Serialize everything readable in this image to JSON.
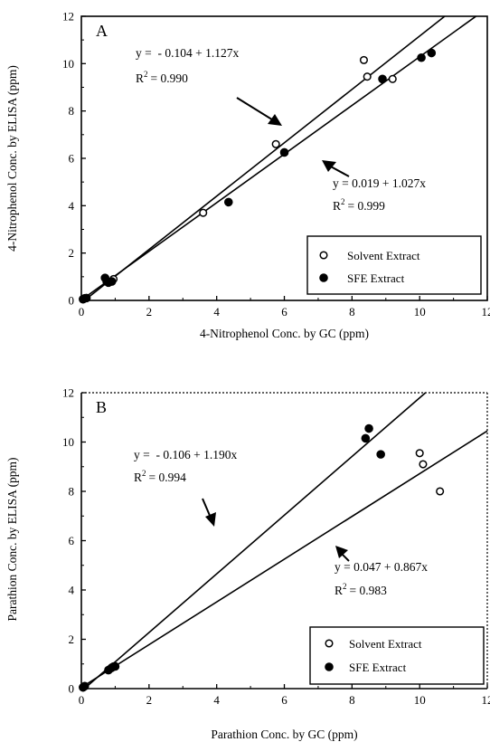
{
  "chart_data": [
    {
      "type": "scatter",
      "panel_label": "A",
      "xlabel": "4-Nitrophenol Conc. by GC (ppm)",
      "ylabel": "4-Nitrophenol Conc. by ELISA (ppm)",
      "xlim": [
        0,
        12
      ],
      "ylim": [
        0,
        12
      ],
      "xticks": [
        "0",
        "2",
        "4",
        "6",
        "8",
        "10",
        "12"
      ],
      "yticks": [
        "0",
        "2",
        "4",
        "6",
        "8",
        "10",
        "12"
      ],
      "grid": false,
      "legend_position": "bottom-right",
      "series": [
        {
          "name": "Solvent Extract",
          "marker": "open-circle",
          "points": [
            [
              0.05,
              0.05
            ],
            [
              0.1,
              0.1
            ],
            [
              0.75,
              0.8
            ],
            [
              0.95,
              0.9
            ],
            [
              3.6,
              3.7
            ],
            [
              5.75,
              6.6
            ],
            [
              8.35,
              10.15
            ],
            [
              8.45,
              9.45
            ],
            [
              9.2,
              9.35
            ]
          ]
        },
        {
          "name": "SFE Extract",
          "marker": "filled-circle",
          "points": [
            [
              0.05,
              0.05
            ],
            [
              0.15,
              0.1
            ],
            [
              0.7,
              0.95
            ],
            [
              0.75,
              0.8
            ],
            [
              0.8,
              0.75
            ],
            [
              0.9,
              0.8
            ],
            [
              4.35,
              4.15
            ],
            [
              6.0,
              6.25
            ],
            [
              8.9,
              9.35
            ],
            [
              10.05,
              10.25
            ],
            [
              10.35,
              10.45
            ]
          ]
        }
      ],
      "fits": [
        {
          "series": "Solvent Extract",
          "intercept": -0.104,
          "slope": 1.127,
          "equation": "y =  - 0.104 + 1.127x",
          "r2_prefix": "R",
          "r2_exp": "2",
          "r2_value": "= 0.990"
        },
        {
          "series": "SFE Extract",
          "intercept": 0.019,
          "slope": 1.027,
          "equation": "y = 0.019 + 1.027x",
          "r2_prefix": "R",
          "r2_exp": "2",
          "r2_value": "= 0.999"
        }
      ]
    },
    {
      "type": "scatter",
      "panel_label": "B",
      "xlabel": "Parathion Conc. by GC (ppm)",
      "ylabel": "Parathion Conc. by ELISA (ppm)",
      "xlim": [
        0,
        12
      ],
      "ylim": [
        0,
        12
      ],
      "xticks": [
        "0",
        "2",
        "4",
        "6",
        "8",
        "10",
        "12"
      ],
      "yticks": [
        "0",
        "2",
        "4",
        "6",
        "8",
        "10",
        "12"
      ],
      "grid": false,
      "legend_position": "bottom-right",
      "series": [
        {
          "name": "Solvent Extract",
          "marker": "open-circle",
          "points": [
            [
              0.05,
              0.05
            ],
            [
              0.1,
              0.1
            ],
            [
              0.85,
              0.8
            ],
            [
              0.95,
              0.9
            ],
            [
              10.0,
              9.55
            ],
            [
              10.1,
              9.1
            ],
            [
              10.6,
              8.0
            ]
          ]
        },
        {
          "name": "SFE Extract",
          "marker": "filled-circle",
          "points": [
            [
              0.05,
              0.05
            ],
            [
              0.1,
              0.1
            ],
            [
              0.8,
              0.75
            ],
            [
              0.9,
              0.85
            ],
            [
              1.0,
              0.9
            ],
            [
              8.4,
              10.15
            ],
            [
              8.5,
              10.55
            ],
            [
              8.85,
              9.5
            ]
          ]
        }
      ],
      "fits": [
        {
          "series": "SFE Extract",
          "intercept": -0.106,
          "slope": 1.19,
          "equation": "y =  - 0.106 + 1.190x",
          "r2_prefix": "R",
          "r2_exp": "2",
          "r2_value": "= 0.994"
        },
        {
          "series": "Solvent Extract",
          "intercept": 0.047,
          "slope": 0.867,
          "equation": "y = 0.047 + 0.867x",
          "r2_prefix": "R",
          "r2_exp": "2",
          "r2_value": "= 0.983"
        }
      ]
    }
  ]
}
